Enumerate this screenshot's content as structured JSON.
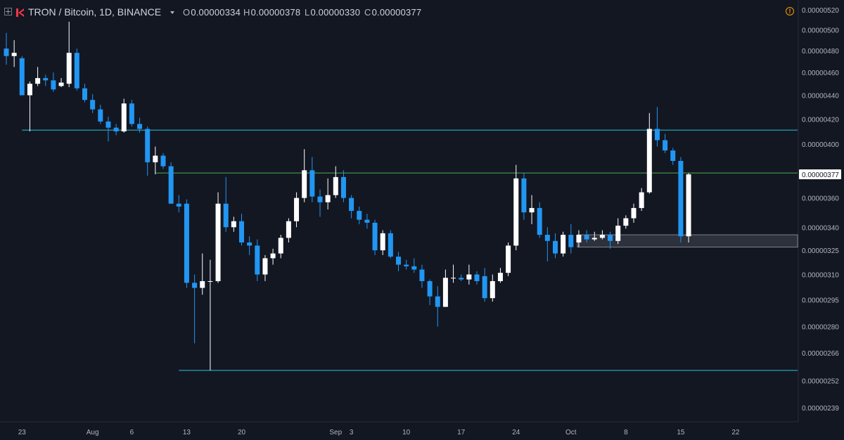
{
  "header": {
    "symbol": "TRON / Bitcoin, 1D, BINANCE",
    "open_label": "O",
    "open_value": "0.00000334",
    "high_label": "H",
    "high_value": "0.00000378",
    "low_label": "L",
    "low_value": "0.00000330",
    "close_label": "C",
    "close_value": "0.00000377"
  },
  "icons": {
    "expand": "plus-square-icon",
    "logo": "tradingview-logo-icon",
    "dropdown": "caret-down-icon",
    "alert": "warning-icon"
  },
  "colors": {
    "background": "#131722",
    "up": "#ffffff",
    "down": "#2196f3",
    "support_line": "#26c6da",
    "resistance_line": "#4caf50",
    "zone": "#5d606b"
  },
  "chart_data": {
    "type": "candlestick",
    "y_axis": {
      "ticks": [
        "0.00000520",
        "0.00000500",
        "0.00000480",
        "0.00000460",
        "0.00000440",
        "0.00000420",
        "0.00000400",
        "0.00000360",
        "0.00000340",
        "0.00000325",
        "0.00000310",
        "0.00000295",
        "0.00000280",
        "0.00000266",
        "0.00000252",
        "0.00000239"
      ],
      "scale": "log",
      "range": [
        2.325e-06,
        5.3e-06
      ]
    },
    "x_axis": {
      "ticks": [
        "23",
        "Aug",
        "6",
        "13",
        "20",
        "Sep",
        "3",
        "10",
        "17",
        "24",
        "Oct",
        "8",
        "15",
        "22"
      ],
      "ticks_comment_excluded": true
    },
    "last_price_label": "0.00000377",
    "candles": [
      {
        "date": "2018-07-21",
        "o": 4.82e-06,
        "h": 4.97e-06,
        "l": 4.67e-06,
        "c": 4.75e-06
      },
      {
        "date": "2018-07-22",
        "o": 4.75e-06,
        "h": 4.9e-06,
        "l": 4.65e-06,
        "c": 4.78e-06
      },
      {
        "date": "2018-07-23",
        "o": 4.73e-06,
        "h": 4.75e-06,
        "l": 4.4e-06,
        "c": 4.4e-06
      },
      {
        "date": "2018-07-24",
        "o": 4.4e-06,
        "h": 4.52e-06,
        "l": 4.1e-06,
        "c": 4.5e-06
      },
      {
        "date": "2018-07-25",
        "o": 4.5e-06,
        "h": 4.65e-06,
        "l": 4.48e-06,
        "c": 4.55e-06
      },
      {
        "date": "2018-07-26",
        "o": 4.55e-06,
        "h": 4.58e-06,
        "l": 4.48e-06,
        "c": 4.53e-06
      },
      {
        "date": "2018-07-27",
        "o": 4.53e-06,
        "h": 4.6e-06,
        "l": 4.43e-06,
        "c": 4.45e-06
      },
      {
        "date": "2018-07-28",
        "o": 4.48e-06,
        "h": 4.55e-06,
        "l": 4.47e-06,
        "c": 4.51e-06
      },
      {
        "date": "2018-07-29",
        "o": 4.5e-06,
        "h": 5.08e-06,
        "l": 4.47e-06,
        "c": 4.78e-06
      },
      {
        "date": "2018-07-30",
        "o": 4.78e-06,
        "h": 4.82e-06,
        "l": 4.44e-06,
        "c": 4.46e-06
      },
      {
        "date": "2018-07-31",
        "o": 4.46e-06,
        "h": 4.5e-06,
        "l": 4.34e-06,
        "c": 4.36e-06
      },
      {
        "date": "2018-08-01",
        "o": 4.36e-06,
        "h": 4.41e-06,
        "l": 4.25e-06,
        "c": 4.28e-06
      },
      {
        "date": "2018-08-02",
        "o": 4.28e-06,
        "h": 4.32e-06,
        "l": 4.16e-06,
        "c": 4.18e-06
      },
      {
        "date": "2018-08-03",
        "o": 4.18e-06,
        "h": 4.22e-06,
        "l": 4.02e-06,
        "c": 4.13e-06
      },
      {
        "date": "2018-08-04",
        "o": 4.13e-06,
        "h": 4.16e-06,
        "l": 4.07e-06,
        "c": 4.1e-06
      },
      {
        "date": "2018-08-05",
        "o": 4.1e-06,
        "h": 4.37e-06,
        "l": 4.09e-06,
        "c": 4.33e-06
      },
      {
        "date": "2018-08-06",
        "o": 4.33e-06,
        "h": 4.36e-06,
        "l": 4.14e-06,
        "c": 4.16e-06
      },
      {
        "date": "2018-08-07",
        "o": 4.16e-06,
        "h": 4.21e-06,
        "l": 4.09e-06,
        "c": 4.12e-06
      },
      {
        "date": "2018-08-08",
        "o": 4.12e-06,
        "h": 4.14e-06,
        "l": 3.76e-06,
        "c": 3.86e-06
      },
      {
        "date": "2018-08-09",
        "o": 3.86e-06,
        "h": 3.98e-06,
        "l": 3.77e-06,
        "c": 3.91e-06
      },
      {
        "date": "2018-08-10",
        "o": 3.91e-06,
        "h": 3.93e-06,
        "l": 3.81e-06,
        "c": 3.83e-06
      },
      {
        "date": "2018-08-11",
        "o": 3.83e-06,
        "h": 3.86e-06,
        "l": 3.56e-06,
        "c": 3.56e-06
      },
      {
        "date": "2018-08-12",
        "o": 3.56e-06,
        "h": 3.62e-06,
        "l": 3.5e-06,
        "c": 3.54e-06
      },
      {
        "date": "2018-08-13",
        "o": 3.56e-06,
        "h": 3.59e-06,
        "l": 3.02e-06,
        "c": 3.05e-06
      },
      {
        "date": "2018-08-14",
        "o": 3.05e-06,
        "h": 3.1e-06,
        "l": 2.71e-06,
        "c": 3.02e-06
      },
      {
        "date": "2018-08-15",
        "o": 3.02e-06,
        "h": 3.23e-06,
        "l": 2.98e-06,
        "c": 3.06e-06
      },
      {
        "date": "2018-08-16",
        "o": 3.06e-06,
        "h": 3.19e-06,
        "l": 2.57e-06,
        "c": 3.06e-06
      },
      {
        "date": "2018-08-17",
        "o": 3.06e-06,
        "h": 3.64e-06,
        "l": 3.05e-06,
        "c": 3.56e-06
      },
      {
        "date": "2018-08-18",
        "o": 3.56e-06,
        "h": 3.75e-06,
        "l": 3.37e-06,
        "c": 3.4e-06
      },
      {
        "date": "2018-08-19",
        "o": 3.4e-06,
        "h": 3.47e-06,
        "l": 3.37e-06,
        "c": 3.44e-06
      },
      {
        "date": "2018-08-20",
        "o": 3.44e-06,
        "h": 3.49e-06,
        "l": 3.28e-06,
        "c": 3.3e-06
      },
      {
        "date": "2018-08-21",
        "o": 3.3e-06,
        "h": 3.34e-06,
        "l": 3.22e-06,
        "c": 3.28e-06
      },
      {
        "date": "2018-08-22",
        "o": 3.28e-06,
        "h": 3.32e-06,
        "l": 3.06e-06,
        "c": 3.1e-06
      },
      {
        "date": "2018-08-23",
        "o": 3.1e-06,
        "h": 3.22e-06,
        "l": 3.06e-06,
        "c": 3.2e-06
      },
      {
        "date": "2018-08-24",
        "o": 3.2e-06,
        "h": 3.26e-06,
        "l": 3.16e-06,
        "c": 3.23e-06
      },
      {
        "date": "2018-08-25",
        "o": 3.23e-06,
        "h": 3.35e-06,
        "l": 3.2e-06,
        "c": 3.33e-06
      },
      {
        "date": "2018-08-26",
        "o": 3.33e-06,
        "h": 3.46e-06,
        "l": 3.3e-06,
        "c": 3.44e-06
      },
      {
        "date": "2018-08-27",
        "o": 3.44e-06,
        "h": 3.64e-06,
        "l": 3.4e-06,
        "c": 3.6e-06
      },
      {
        "date": "2018-08-28",
        "o": 3.6e-06,
        "h": 3.96e-06,
        "l": 3.57e-06,
        "c": 3.8e-06
      },
      {
        "date": "2018-08-29",
        "o": 3.8e-06,
        "h": 3.9e-06,
        "l": 3.57e-06,
        "c": 3.61e-06
      },
      {
        "date": "2018-08-30",
        "o": 3.61e-06,
        "h": 3.66e-06,
        "l": 3.47e-06,
        "c": 3.57e-06
      },
      {
        "date": "2018-08-31",
        "o": 3.57e-06,
        "h": 3.74e-06,
        "l": 3.52e-06,
        "c": 3.62e-06
      },
      {
        "date": "2018-09-01",
        "o": 3.62e-06,
        "h": 3.83e-06,
        "l": 3.6e-06,
        "c": 3.75e-06
      },
      {
        "date": "2018-09-02",
        "o": 3.75e-06,
        "h": 3.8e-06,
        "l": 3.57e-06,
        "c": 3.6e-06
      },
      {
        "date": "2018-09-03",
        "o": 3.6e-06,
        "h": 3.62e-06,
        "l": 3.46e-06,
        "c": 3.51e-06
      },
      {
        "date": "2018-09-04",
        "o": 3.51e-06,
        "h": 3.54e-06,
        "l": 3.42e-06,
        "c": 3.45e-06
      },
      {
        "date": "2018-09-05",
        "o": 3.45e-06,
        "h": 3.49e-06,
        "l": 3.39e-06,
        "c": 3.43e-06
      },
      {
        "date": "2018-09-06",
        "o": 3.43e-06,
        "h": 3.45e-06,
        "l": 3.22e-06,
        "c": 3.25e-06
      },
      {
        "date": "2018-09-07",
        "o": 3.25e-06,
        "h": 3.38e-06,
        "l": 3.22e-06,
        "c": 3.36e-06
      },
      {
        "date": "2018-09-08",
        "o": 3.36e-06,
        "h": 3.38e-06,
        "l": 3.2e-06,
        "c": 3.21e-06
      },
      {
        "date": "2018-09-09",
        "o": 3.21e-06,
        "h": 3.24e-06,
        "l": 3.12e-06,
        "c": 3.16e-06
      },
      {
        "date": "2018-09-10",
        "o": 3.16e-06,
        "h": 3.19e-06,
        "l": 3.13e-06,
        "c": 3.15e-06
      },
      {
        "date": "2018-09-11",
        "o": 3.15e-06,
        "h": 3.2e-06,
        "l": 3.11e-06,
        "c": 3.13e-06
      },
      {
        "date": "2018-09-12",
        "o": 3.13e-06,
        "h": 3.16e-06,
        "l": 3.02e-06,
        "c": 3.06e-06
      },
      {
        "date": "2018-09-13",
        "o": 3.06e-06,
        "h": 3.07e-06,
        "l": 2.92e-06,
        "c": 2.97e-06
      },
      {
        "date": "2018-09-14",
        "o": 2.97e-06,
        "h": 3.03e-06,
        "l": 2.8e-06,
        "c": 2.91e-06
      },
      {
        "date": "2018-09-15",
        "o": 2.91e-06,
        "h": 3.13e-06,
        "l": 2.91e-06,
        "c": 3.08e-06
      },
      {
        "date": "2018-09-16",
        "o": 3.08e-06,
        "h": 3.16e-06,
        "l": 3.05e-06,
        "c": 3.08e-06
      },
      {
        "date": "2018-09-17",
        "o": 3.08e-06,
        "h": 3.1e-06,
        "l": 3.06e-06,
        "c": 3.07e-06
      },
      {
        "date": "2018-09-18",
        "o": 3.07e-06,
        "h": 3.16e-06,
        "l": 3.04e-06,
        "c": 3.1e-06
      },
      {
        "date": "2018-09-19",
        "o": 3.1e-06,
        "h": 3.12e-06,
        "l": 3.04e-06,
        "c": 3.06e-06
      },
      {
        "date": "2018-09-20",
        "o": 3.09e-06,
        "h": 3.14e-06,
        "l": 2.94e-06,
        "c": 2.96e-06
      },
      {
        "date": "2018-09-21",
        "o": 2.96e-06,
        "h": 3.1e-06,
        "l": 2.94e-06,
        "c": 3.06e-06
      },
      {
        "date": "2018-09-22",
        "o": 3.06e-06,
        "h": 3.14e-06,
        "l": 3.05e-06,
        "c": 3.11e-06
      },
      {
        "date": "2018-09-23",
        "o": 3.11e-06,
        "h": 3.3e-06,
        "l": 3.09e-06,
        "c": 3.28e-06
      },
      {
        "date": "2018-09-24",
        "o": 3.28e-06,
        "h": 3.84e-06,
        "l": 3.25e-06,
        "c": 3.74e-06
      },
      {
        "date": "2018-09-25",
        "o": 3.74e-06,
        "h": 3.78e-06,
        "l": 3.45e-06,
        "c": 3.5e-06
      },
      {
        "date": "2018-09-26",
        "o": 3.5e-06,
        "h": 3.62e-06,
        "l": 3.42e-06,
        "c": 3.53e-06
      },
      {
        "date": "2018-09-27",
        "o": 3.53e-06,
        "h": 3.57e-06,
        "l": 3.33e-06,
        "c": 3.35e-06
      },
      {
        "date": "2018-09-28",
        "o": 3.35e-06,
        "h": 3.4e-06,
        "l": 3.18e-06,
        "c": 3.31e-06
      },
      {
        "date": "2018-09-29",
        "o": 3.31e-06,
        "h": 3.36e-06,
        "l": 3.2e-06,
        "c": 3.23e-06
      },
      {
        "date": "2018-09-30",
        "o": 3.23e-06,
        "h": 3.37e-06,
        "l": 3.21e-06,
        "c": 3.35e-06
      },
      {
        "date": "2018-10-01",
        "o": 3.35e-06,
        "h": 3.42e-06,
        "l": 3.23e-06,
        "c": 3.27e-06
      },
      {
        "date": "2018-10-02",
        "o": 3.3e-06,
        "h": 3.38e-06,
        "l": 3.27e-06,
        "c": 3.35e-06
      },
      {
        "date": "2018-10-03",
        "o": 3.35e-06,
        "h": 3.38e-06,
        "l": 3.3e-06,
        "c": 3.32e-06
      },
      {
        "date": "2018-10-04",
        "o": 3.32e-06,
        "h": 3.37e-06,
        "l": 3.31e-06,
        "c": 3.33e-06
      },
      {
        "date": "2018-10-05",
        "o": 3.33e-06,
        "h": 3.38e-06,
        "l": 3.32e-06,
        "c": 3.35e-06
      },
      {
        "date": "2018-10-06",
        "o": 3.35e-06,
        "h": 3.37e-06,
        "l": 3.26e-06,
        "c": 3.31e-06
      },
      {
        "date": "2018-10-07",
        "o": 3.31e-06,
        "h": 3.46e-06,
        "l": 3.29e-06,
        "c": 3.41e-06
      },
      {
        "date": "2018-10-08",
        "o": 3.41e-06,
        "h": 3.48e-06,
        "l": 3.39e-06,
        "c": 3.46e-06
      },
      {
        "date": "2018-10-09",
        "o": 3.46e-06,
        "h": 3.56e-06,
        "l": 3.43e-06,
        "c": 3.53e-06
      },
      {
        "date": "2018-10-10",
        "o": 3.53e-06,
        "h": 3.67e-06,
        "l": 3.51e-06,
        "c": 3.64e-06
      },
      {
        "date": "2018-10-11",
        "o": 3.64e-06,
        "h": 4.25e-06,
        "l": 3.63e-06,
        "c": 4.12e-06
      },
      {
        "date": "2018-10-12",
        "o": 4.12e-06,
        "h": 4.3e-06,
        "l": 3.98e-06,
        "c": 4.03e-06
      },
      {
        "date": "2018-10-13",
        "o": 4.03e-06,
        "h": 4.08e-06,
        "l": 3.93e-06,
        "c": 3.95e-06
      },
      {
        "date": "2018-10-14",
        "o": 3.95e-06,
        "h": 3.97e-06,
        "l": 3.84e-06,
        "c": 3.87e-06
      },
      {
        "date": "2018-10-15",
        "o": 3.87e-06,
        "h": 3.9e-06,
        "l": 3.3e-06,
        "c": 3.34e-06
      },
      {
        "date": "2018-10-16",
        "o": 3.34e-06,
        "h": 3.78e-06,
        "l": 3.3e-06,
        "c": 3.77e-06
      }
    ],
    "horizontal_lines": [
      {
        "value": 4.11e-06,
        "color": "#26c6da",
        "from": "2018-07-23",
        "to": "end"
      },
      {
        "value": 3.78e-06,
        "color": "#4caf50",
        "from": "2018-08-09",
        "to": "end"
      },
      {
        "value": 2.57e-06,
        "color": "#26c6da",
        "from": "2018-08-12",
        "to": "end"
      }
    ],
    "zones": [
      {
        "from": "2018-10-02",
        "to": "end",
        "low": 3.27e-06,
        "high": 3.35e-06,
        "color": "#5d606b"
      }
    ]
  }
}
